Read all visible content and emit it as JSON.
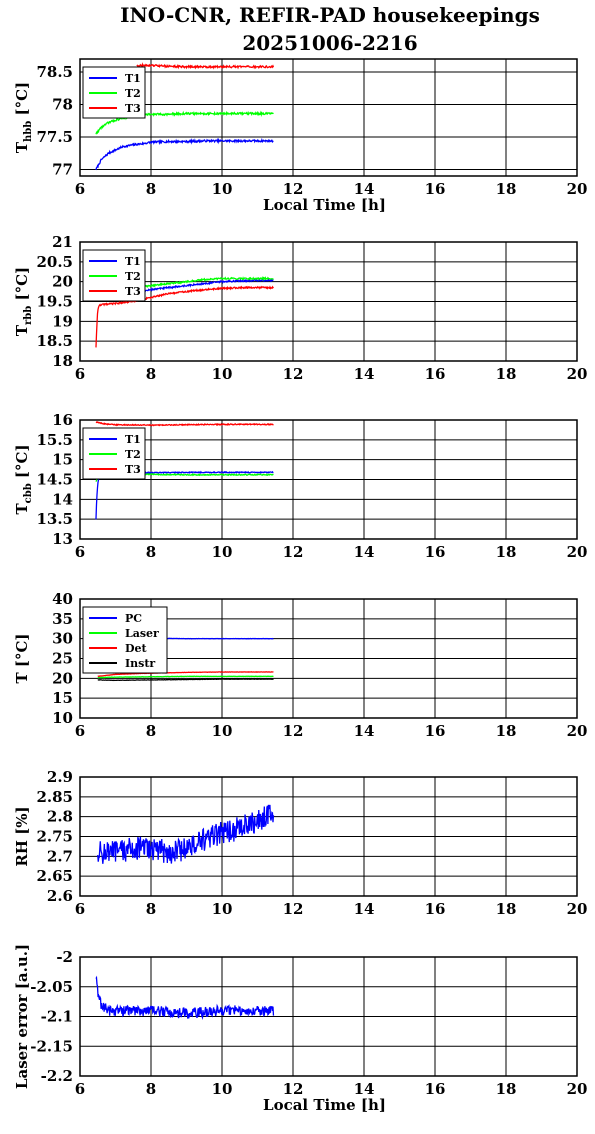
{
  "title_line1": "INO-CNR, REFIR-PAD housekeepings",
  "title_line2": "20251006-2216",
  "colors": {
    "blue": "#0000ff",
    "green": "#00ff00",
    "red": "#ff0000",
    "black": "#000000"
  },
  "chart_data": [
    {
      "type": "line",
      "ylabel_main": "T",
      "ylabel_sub": "hbb",
      "ylabel_unit": "[°C]",
      "xlabel": "Local Time [h]",
      "xlim": [
        6,
        20
      ],
      "ylim": [
        76.9,
        78.7
      ],
      "yticks": [
        77,
        77.5,
        78,
        78.5
      ],
      "xticks": [
        6,
        8,
        10,
        12,
        14,
        16,
        18,
        20
      ],
      "legend": "top-left",
      "grid": true,
      "series": [
        {
          "name": "T1",
          "color": "#0000ff",
          "x": [
            6.45,
            6.6,
            6.8,
            7.0,
            7.2,
            7.5,
            7.8,
            8.0,
            8.5,
            9.0,
            9.5,
            10.0,
            10.5,
            11.0,
            11.45
          ],
          "y": [
            77.0,
            77.15,
            77.25,
            77.3,
            77.35,
            77.38,
            77.4,
            77.42,
            77.43,
            77.43,
            77.44,
            77.44,
            77.44,
            77.44,
            77.44
          ],
          "noise": 0.015
        },
        {
          "name": "T2",
          "color": "#00ff00",
          "x": [
            6.45,
            6.6,
            6.8,
            7.0,
            7.2,
            7.5,
            7.8,
            8.0,
            8.5,
            9.0,
            9.5,
            10.0,
            10.5,
            11.0,
            11.45
          ],
          "y": [
            77.55,
            77.65,
            77.72,
            77.76,
            77.79,
            77.82,
            77.84,
            77.85,
            77.85,
            77.86,
            77.86,
            77.86,
            77.86,
            77.86,
            77.86
          ],
          "noise": 0.015
        },
        {
          "name": "T3",
          "color": "#ff0000",
          "x": [
            7.6,
            8.0,
            8.5,
            9.0,
            9.5,
            10.0,
            10.5,
            11.0,
            11.45
          ],
          "y": [
            78.6,
            78.6,
            78.59,
            78.58,
            78.58,
            78.58,
            78.58,
            78.58,
            78.58
          ],
          "noise": 0.015
        }
      ]
    },
    {
      "type": "line",
      "ylabel_main": "T",
      "ylabel_sub": "rbb",
      "ylabel_unit": "[°C]",
      "xlabel": "",
      "xlim": [
        6,
        20
      ],
      "ylim": [
        18,
        21
      ],
      "yticks": [
        18,
        18.5,
        19,
        19.5,
        20,
        20.5,
        21
      ],
      "xticks": [
        6,
        8,
        10,
        12,
        14,
        16,
        18,
        20
      ],
      "legend": "top-left",
      "grid": true,
      "series": [
        {
          "name": "T1",
          "color": "#0000ff",
          "x": [
            6.45,
            6.5,
            6.6,
            7.0,
            7.5,
            8.0,
            8.5,
            9.0,
            9.5,
            10.0,
            10.5,
            11.0,
            11.45
          ],
          "y": [
            19.6,
            19.55,
            19.55,
            19.6,
            19.7,
            19.8,
            19.85,
            19.9,
            19.95,
            20.0,
            20.02,
            20.03,
            20.03
          ],
          "noise": 0.02
        },
        {
          "name": "T2",
          "color": "#00ff00",
          "x": [
            6.45,
            6.5,
            6.6,
            7.0,
            7.5,
            8.0,
            8.5,
            9.0,
            9.5,
            10.0,
            10.5,
            11.0,
            11.45
          ],
          "y": [
            19.65,
            19.7,
            19.75,
            19.8,
            19.85,
            19.9,
            19.95,
            20.0,
            20.05,
            20.08,
            20.08,
            20.08,
            20.08
          ],
          "noise": 0.02
        },
        {
          "name": "T3",
          "color": "#ff0000",
          "x": [
            6.45,
            6.47,
            6.5,
            6.55,
            6.6,
            7.0,
            7.5,
            8.0,
            8.5,
            9.0,
            9.5,
            10.0,
            10.5,
            11.0,
            11.45
          ],
          "y": [
            18.35,
            18.8,
            19.3,
            19.4,
            19.42,
            19.45,
            19.5,
            19.6,
            19.7,
            19.75,
            19.8,
            19.83,
            19.85,
            19.85,
            19.85
          ],
          "noise": 0.02
        }
      ]
    },
    {
      "type": "line",
      "ylabel_main": "T",
      "ylabel_sub": "cbb",
      "ylabel_unit": "[°C]",
      "xlabel": "",
      "xlim": [
        6,
        20
      ],
      "ylim": [
        13,
        16
      ],
      "yticks": [
        13,
        13.5,
        14,
        14.5,
        15,
        15.5,
        16
      ],
      "xticks": [
        6,
        8,
        10,
        12,
        14,
        16,
        18,
        20
      ],
      "legend": "top-left",
      "grid": true,
      "series": [
        {
          "name": "T1",
          "color": "#0000ff",
          "x": [
            6.45,
            6.47,
            6.5,
            6.55,
            6.7,
            7.0,
            8.0,
            9.0,
            10.0,
            11.0,
            11.45
          ],
          "y": [
            13.5,
            14.0,
            14.4,
            14.6,
            14.65,
            14.67,
            14.67,
            14.68,
            14.68,
            14.68,
            14.68
          ],
          "noise": 0.012
        },
        {
          "name": "T2",
          "color": "#00ff00",
          "x": [
            6.45,
            6.5,
            6.55,
            6.7,
            7.0,
            8.0,
            9.0,
            10.0,
            11.0,
            11.45
          ],
          "y": [
            14.45,
            14.55,
            14.6,
            14.62,
            14.63,
            14.63,
            14.62,
            14.62,
            14.62,
            14.62
          ],
          "noise": 0.012
        },
        {
          "name": "T3",
          "color": "#ff0000",
          "x": [
            6.45,
            6.7,
            7.0,
            8.0,
            9.0,
            10.0,
            11.0,
            11.45
          ],
          "y": [
            15.95,
            15.9,
            15.88,
            15.87,
            15.88,
            15.89,
            15.89,
            15.89
          ],
          "noise": 0.012
        }
      ]
    },
    {
      "type": "line",
      "ylabel_main": "T",
      "ylabel_sub": "",
      "ylabel_unit": "[°C]",
      "xlabel": "",
      "xlim": [
        6,
        20
      ],
      "ylim": [
        10,
        40
      ],
      "yticks": [
        10,
        15,
        20,
        25,
        30,
        35,
        40
      ],
      "xticks": [
        6,
        8,
        10,
        12,
        14,
        16,
        18,
        20
      ],
      "legend": "top-left",
      "grid": true,
      "series": [
        {
          "name": "PC",
          "color": "#0000ff",
          "x": [
            6.5,
            7.0,
            8.0,
            9.0,
            10.0,
            11.0,
            11.45
          ],
          "y": [
            30.0,
            30.1,
            30.1,
            30.0,
            30.0,
            30.0,
            30.0
          ],
          "noise": 0.04
        },
        {
          "name": "Laser",
          "color": "#00ff00",
          "x": [
            6.5,
            7.0,
            8.0,
            9.0,
            10.0,
            11.0,
            11.45
          ],
          "y": [
            20.2,
            20.3,
            20.4,
            20.5,
            20.5,
            20.5,
            20.5
          ],
          "noise": 0.04
        },
        {
          "name": "Det",
          "color": "#ff0000",
          "x": [
            6.5,
            7.0,
            8.0,
            9.0,
            10.0,
            11.0,
            11.45
          ],
          "y": [
            20.5,
            21.0,
            21.3,
            21.5,
            21.6,
            21.6,
            21.6
          ],
          "noise": 0.04
        },
        {
          "name": "Instr",
          "color": "#000000",
          "x": [
            6.5,
            7.0,
            8.0,
            9.0,
            10.0,
            11.0,
            11.45
          ],
          "y": [
            19.6,
            19.5,
            19.6,
            19.7,
            19.8,
            19.8,
            19.8
          ],
          "noise": 0.04
        }
      ]
    },
    {
      "type": "line",
      "ylabel_main": "RH",
      "ylabel_sub": "",
      "ylabel_unit": "[%]",
      "xlabel": "",
      "xlim": [
        6,
        20
      ],
      "ylim": [
        2.6,
        2.9
      ],
      "yticks": [
        2.6,
        2.65,
        2.7,
        2.75,
        2.8,
        2.85,
        2.9
      ],
      "xticks": [
        6,
        8,
        10,
        12,
        14,
        16,
        18,
        20
      ],
      "legend": "none",
      "grid": true,
      "series": [
        {
          "name": "",
          "color": "#0000ff",
          "x": [
            6.5,
            7.0,
            7.5,
            8.0,
            8.5,
            9.0,
            9.5,
            10.0,
            10.5,
            11.0,
            11.45
          ],
          "y": [
            2.71,
            2.71,
            2.72,
            2.72,
            2.71,
            2.72,
            2.74,
            2.76,
            2.77,
            2.79,
            2.81
          ],
          "noise": 0.03
        }
      ]
    },
    {
      "type": "line",
      "ylabel_main": "Laser error [a.u.]",
      "ylabel_sub": "",
      "ylabel_unit": "",
      "xlabel": "Local Time [h]",
      "xlim": [
        6,
        20
      ],
      "ylim": [
        -2.2,
        -2.0
      ],
      "yticks": [
        -2.2,
        -2.15,
        -2.1,
        -2.05,
        -2.0
      ],
      "xticks": [
        6,
        8,
        10,
        12,
        14,
        16,
        18,
        20
      ],
      "legend": "none",
      "grid": true,
      "series": [
        {
          "name": "",
          "color": "#0000ff",
          "x": [
            6.45,
            6.5,
            6.6,
            6.8,
            7.0,
            8.0,
            9.0,
            10.0,
            11.0,
            11.45
          ],
          "y": [
            -2.035,
            -2.06,
            -2.08,
            -2.09,
            -2.09,
            -2.09,
            -2.095,
            -2.09,
            -2.09,
            -2.09
          ],
          "noise": 0.009
        }
      ]
    }
  ]
}
